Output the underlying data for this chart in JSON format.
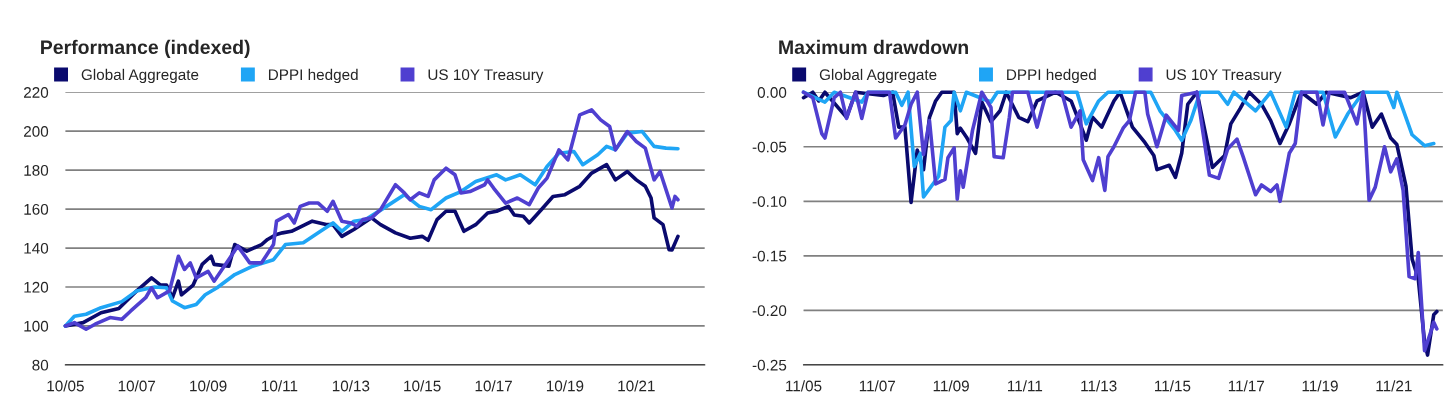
{
  "chart_data": [
    {
      "type": "line",
      "title": "Performance (indexed)",
      "legend": "top left",
      "grid": "y",
      "marker": "none",
      "line_style": "solid",
      "xlim": [
        "2005-10",
        "2023-09"
      ],
      "ylim": [
        80,
        220
      ],
      "yticks": [
        80,
        100,
        120,
        140,
        160,
        180,
        200,
        220
      ],
      "xticks": [
        {
          "value": "2005-10",
          "label": "10/05"
        },
        {
          "value": "2007-10",
          "label": "10/07"
        },
        {
          "value": "2009-10",
          "label": "10/09"
        },
        {
          "value": "2011-10",
          "label": "10/11"
        },
        {
          "value": "2013-10",
          "label": "10/13"
        },
        {
          "value": "2015-10",
          "label": "10/15"
        },
        {
          "value": "2017-10",
          "label": "10/17"
        },
        {
          "value": "2019-10",
          "label": "10/19"
        },
        {
          "value": "2021-10",
          "label": "10/21"
        }
      ],
      "series": [
        {
          "name": "Global Aggregate",
          "color": "#0a0a6e",
          "x": [
            "2005-10",
            "2006-04",
            "2006-10",
            "2007-04",
            "2007-10",
            "2008-03",
            "2008-06",
            "2008-08",
            "2008-10",
            "2008-12",
            "2009-01",
            "2009-05",
            "2009-08",
            "2009-11",
            "2009-12",
            "2010-05",
            "2010-07",
            "2010-11",
            "2011-04",
            "2011-06",
            "2011-09",
            "2011-11",
            "2012-02",
            "2012-09",
            "2013-02",
            "2013-04",
            "2013-07",
            "2013-09",
            "2013-11",
            "2014-05",
            "2014-08",
            "2015-01",
            "2015-06",
            "2015-10",
            "2015-12",
            "2016-03",
            "2016-06",
            "2016-09",
            "2016-12",
            "2017-04",
            "2017-08",
            "2017-11",
            "2018-03",
            "2018-05",
            "2018-08",
            "2018-10",
            "2019-02",
            "2019-06",
            "2019-10",
            "2020-03",
            "2020-07",
            "2020-12",
            "2021-03",
            "2021-07",
            "2021-10",
            "2022-01",
            "2022-03",
            "2022-04",
            "2022-07",
            "2022-09",
            "2022-10",
            "2022-12"
          ],
          "values": [
            100,
            101.7,
            106.8,
            109,
            118,
            124.7,
            121,
            121,
            114.5,
            123,
            116,
            121,
            131.6,
            135.8,
            131.6,
            130.7,
            141.8,
            138.4,
            141.8,
            144.4,
            147,
            147.8,
            148.6,
            153.8,
            152,
            152,
            146,
            147.8,
            149.5,
            155.5,
            152,
            147.8,
            145,
            146,
            144,
            154.6,
            158.9,
            158.9,
            148.6,
            152,
            158,
            158.9,
            161.4,
            157,
            156.3,
            152.9,
            159.7,
            166.5,
            167.4,
            171.7,
            178.5,
            182.8,
            175,
            179.3,
            175,
            171.7,
            165.7,
            155.5,
            152,
            139.2,
            139,
            146
          ]
        },
        {
          "name": "DPPI hedged",
          "color": "#1fa5f5",
          "x": [
            "2005-10",
            "2006-01",
            "2006-05",
            "2006-10",
            "2007-05",
            "2007-10",
            "2008-04",
            "2008-08",
            "2008-10",
            "2009-02",
            "2009-06",
            "2009-09",
            "2010-01",
            "2010-07",
            "2011-01",
            "2011-08",
            "2011-12",
            "2012-06",
            "2012-11",
            "2013-04",
            "2013-07",
            "2013-11",
            "2014-03",
            "2014-10",
            "2015-04",
            "2015-09",
            "2016-01",
            "2016-06",
            "2016-11",
            "2017-04",
            "2017-11",
            "2018-02",
            "2018-07",
            "2018-12",
            "2019-04",
            "2019-08",
            "2020-01",
            "2020-04",
            "2020-09",
            "2020-12",
            "2021-03",
            "2021-07",
            "2021-12",
            "2022-04",
            "2022-08",
            "2022-12"
          ],
          "values": [
            100,
            105,
            106,
            109.4,
            112.5,
            118,
            120,
            119.6,
            112.8,
            109.4,
            111,
            116,
            119.6,
            126.4,
            130.7,
            134,
            141.8,
            142.7,
            147.8,
            152.9,
            148.6,
            153.8,
            154.6,
            161.4,
            167.4,
            161.4,
            159.7,
            165.7,
            169,
            174.2,
            177.6,
            175,
            177.6,
            172.5,
            181.9,
            188.7,
            189.6,
            182.8,
            187.9,
            192.2,
            190.5,
            199,
            199.8,
            192.2,
            191.3,
            191
          ]
        },
        {
          "name": "US 10Y Treasury",
          "color": "#4f3fd0",
          "x": [
            "2005-10",
            "2006-01",
            "2006-05",
            "2006-08",
            "2007-01",
            "2007-05",
            "2007-08",
            "2008-01",
            "2008-03",
            "2008-05",
            "2008-09",
            "2008-12",
            "2009-02",
            "2009-04",
            "2009-06",
            "2009-10",
            "2009-12",
            "2010-05",
            "2010-08",
            "2010-12",
            "2011-04",
            "2011-08",
            "2011-09",
            "2012-01",
            "2012-03",
            "2012-05",
            "2012-08",
            "2012-11",
            "2013-02",
            "2013-04",
            "2013-07",
            "2013-10",
            "2013-12",
            "2014-02",
            "2014-05",
            "2014-08",
            "2015-01",
            "2015-04",
            "2015-06",
            "2015-09",
            "2015-12",
            "2016-02",
            "2016-06",
            "2016-09",
            "2016-11",
            "2017-02",
            "2017-07",
            "2017-08",
            "2017-10",
            "2018-02",
            "2018-06",
            "2018-10",
            "2019-01",
            "2019-04",
            "2019-08",
            "2019-11",
            "2020-03",
            "2020-07",
            "2020-10",
            "2021-01",
            "2021-03",
            "2021-07",
            "2021-10",
            "2022-01",
            "2022-04",
            "2022-06",
            "2022-10",
            "2022-11",
            "2022-12"
          ],
          "values": [
            100,
            101.7,
            98.3,
            100.9,
            104.3,
            103.4,
            107.7,
            114.5,
            119.6,
            114.5,
            118,
            135.8,
            129,
            132.4,
            124.7,
            128,
            123,
            134.1,
            141,
            132.4,
            132.4,
            141.8,
            153.8,
            157.2,
            152.9,
            161.4,
            163.1,
            163.1,
            158.9,
            164,
            153.8,
            152.9,
            151.2,
            154.6,
            155.5,
            159.7,
            172.5,
            168.3,
            164.8,
            168.3,
            166.5,
            175,
            181,
            177.6,
            168.3,
            169,
            172.5,
            175,
            170.8,
            163.1,
            165.7,
            162.3,
            170.8,
            175.9,
            190.4,
            185.3,
            208.4,
            210.9,
            205.8,
            202.4,
            190.4,
            199.8,
            194.7,
            191.3,
            175,
            179.3,
            160.6,
            166.5,
            164.8
          ]
        }
      ]
    },
    {
      "type": "line",
      "title": "Maximum drawdown",
      "legend": "top left",
      "grid": "y",
      "marker": "none",
      "line_style": "solid",
      "xlim": [
        "2005-11",
        "2023-03"
      ],
      "ylim": [
        -0.25,
        0
      ],
      "yticks": [
        {
          "value": -0.25,
          "label": "-0.25"
        },
        {
          "value": -0.2,
          "label": "-0.20"
        },
        {
          "value": -0.15,
          "label": "-0.15"
        },
        {
          "value": -0.1,
          "label": "-0.10"
        },
        {
          "value": -0.05,
          "label": "-0.05"
        },
        {
          "value": 0,
          "label": "0.00"
        }
      ],
      "xticks": [
        {
          "value": "2005-11",
          "label": "11/05"
        },
        {
          "value": "2007-11",
          "label": "11/07"
        },
        {
          "value": "2009-11",
          "label": "11/09"
        },
        {
          "value": "2011-11",
          "label": "11/11"
        },
        {
          "value": "2013-11",
          "label": "11/13"
        },
        {
          "value": "2015-11",
          "label": "11/15"
        },
        {
          "value": "2017-11",
          "label": "11/17"
        },
        {
          "value": "2019-11",
          "label": "11/19"
        },
        {
          "value": "2021-11",
          "label": "11/21"
        }
      ],
      "series": [
        {
          "name": "Global Aggregate",
          "color": "#0a0a6e",
          "x": [
            "2005-11",
            "2006-02",
            "2006-04",
            "2006-06",
            "2007-01",
            "2007-04",
            "2008-01",
            "2008-04",
            "2008-06",
            "2008-08",
            "2008-10",
            "2008-12",
            "2009-02",
            "2009-04",
            "2009-06",
            "2009-08",
            "2009-12",
            "2010-01",
            "2010-02",
            "2010-04",
            "2010-07",
            "2010-09",
            "2010-12",
            "2011-03",
            "2011-05",
            "2011-09",
            "2011-12",
            "2012-03",
            "2012-09",
            "2013-02",
            "2013-05",
            "2013-07",
            "2013-09",
            "2013-12",
            "2014-04",
            "2014-06",
            "2014-10",
            "2015-02",
            "2015-05",
            "2015-06",
            "2015-10",
            "2015-12",
            "2016-02",
            "2016-04",
            "2016-07",
            "2016-12",
            "2017-04",
            "2017-06",
            "2017-09",
            "2017-12",
            "2018-04",
            "2018-07",
            "2018-10",
            "2019-01",
            "2019-05",
            "2019-10",
            "2020-01",
            "2020-09",
            "2021-01",
            "2021-04",
            "2021-07",
            "2021-10",
            "2021-12",
            "2022-03",
            "2022-05",
            "2022-07",
            "2022-09",
            "2022-10",
            "2022-12",
            "2023-01"
          ],
          "values": [
            -0.005,
            0,
            -0.008,
            0,
            -0.023,
            0,
            -0.003,
            0,
            -0.032,
            -0.032,
            -0.101,
            -0.053,
            -0.071,
            -0.023,
            -0.008,
            0,
            0,
            -0.038,
            -0.033,
            -0.041,
            -0.056,
            -0.009,
            -0.027,
            -0.017,
            0,
            -0.023,
            -0.027,
            -0.008,
            0,
            -0.008,
            -0.029,
            -0.044,
            -0.023,
            -0.032,
            -0.008,
            0,
            -0.032,
            -0.046,
            -0.058,
            -0.071,
            -0.067,
            -0.078,
            -0.056,
            -0.011,
            0,
            -0.069,
            -0.058,
            -0.029,
            -0.015,
            0,
            -0.011,
            -0.026,
            -0.047,
            -0.029,
            0,
            -0.011,
            0,
            -0.005,
            0,
            -0.032,
            -0.02,
            -0.042,
            -0.048,
            -0.086,
            -0.153,
            -0.171,
            -0.229,
            -0.241,
            -0.204,
            -0.201
          ]
        },
        {
          "name": "DPPI hedged",
          "color": "#1fa5f5",
          "x": [
            "2005-11",
            "2006-06",
            "2006-09",
            "2007-06",
            "2007-08",
            "2008-05",
            "2008-07",
            "2008-09",
            "2008-11",
            "2009-01",
            "2009-02",
            "2009-07",
            "2009-09",
            "2009-11",
            "2009-12",
            "2010-02",
            "2010-04",
            "2010-12",
            "2011-02",
            "2013-04",
            "2013-07",
            "2013-11",
            "2014-02",
            "2015-04",
            "2015-07",
            "2015-12",
            "2016-02",
            "2016-05",
            "2016-08",
            "2017-02",
            "2017-05",
            "2017-07",
            "2018-02",
            "2018-07",
            "2018-12",
            "2019-03",
            "2019-12",
            "2020-04",
            "2020-08",
            "2021-01",
            "2021-09",
            "2021-11",
            "2021-12",
            "2022-05",
            "2022-09",
            "2022-12"
          ],
          "values": [
            0,
            -0.009,
            0,
            -0.009,
            0,
            0,
            -0.012,
            0,
            -0.068,
            -0.056,
            -0.096,
            -0.077,
            -0.032,
            -0.026,
            0,
            -0.017,
            0,
            -0.009,
            0,
            0,
            -0.029,
            -0.008,
            0,
            0,
            -0.017,
            -0.035,
            -0.044,
            -0.026,
            0,
            0,
            -0.011,
            0,
            -0.017,
            0,
            -0.032,
            0,
            0,
            -0.041,
            -0.02,
            0,
            0,
            -0.014,
            0,
            -0.039,
            -0.049,
            -0.047
          ]
        },
        {
          "name": "US 10Y Treasury",
          "color": "#4f3fd0",
          "x": [
            "2005-11",
            "2006-02",
            "2006-05",
            "2006-06",
            "2006-09",
            "2006-11",
            "2007-01",
            "2007-04",
            "2007-06",
            "2007-08",
            "2008-03",
            "2008-05",
            "2008-08",
            "2008-10",
            "2008-12",
            "2009-02",
            "2009-04",
            "2009-06",
            "2009-09",
            "2009-10",
            "2009-12",
            "2010-01",
            "2010-02",
            "2010-03",
            "2010-06",
            "2010-09",
            "2010-12",
            "2011-01",
            "2011-04",
            "2011-06",
            "2011-07",
            "2011-12",
            "2012-03",
            "2012-06",
            "2012-11",
            "2013-02",
            "2013-05",
            "2013-06",
            "2013-09",
            "2013-11",
            "2014-01",
            "2014-02",
            "2014-04",
            "2014-07",
            "2014-09",
            "2014-11",
            "2015-02",
            "2015-03",
            "2015-06",
            "2015-09",
            "2016-01",
            "2016-02",
            "2016-07",
            "2016-11",
            "2017-02",
            "2017-05",
            "2017-08",
            "2017-10",
            "2018-02",
            "2018-04",
            "2018-07",
            "2018-09",
            "2018-10",
            "2019-01",
            "2019-03",
            "2019-05",
            "2019-10",
            "2019-12",
            "2020-02",
            "2020-07",
            "2020-11",
            "2021-01",
            "2021-03",
            "2021-05",
            "2021-08",
            "2021-10",
            "2021-12",
            "2022-02",
            "2022-04",
            "2022-06",
            "2022-07",
            "2022-09",
            "2022-11",
            "2022-12",
            "2023-01"
          ],
          "values": [
            0,
            -0.005,
            -0.038,
            -0.042,
            -0.005,
            0,
            -0.024,
            0,
            -0.024,
            0,
            0,
            -0.042,
            -0.03,
            -0.011,
            0,
            -0.057,
            -0.026,
            -0.084,
            -0.08,
            -0.06,
            -0.051,
            -0.098,
            -0.072,
            -0.087,
            -0.035,
            0,
            -0.014,
            -0.059,
            -0.06,
            -0.023,
            0,
            0,
            -0.032,
            0,
            0,
            -0.032,
            -0.017,
            -0.062,
            -0.081,
            -0.06,
            -0.09,
            -0.059,
            -0.05,
            -0.033,
            -0.026,
            0,
            0,
            -0.02,
            -0.05,
            -0.021,
            -0.035,
            -0.003,
            0,
            -0.076,
            -0.079,
            -0.052,
            -0.043,
            -0.059,
            -0.094,
            -0.085,
            -0.091,
            -0.085,
            -0.1,
            -0.056,
            -0.047,
            0,
            0,
            -0.03,
            0,
            0,
            -0.029,
            0,
            -0.099,
            -0.087,
            -0.05,
            -0.073,
            -0.061,
            -0.09,
            -0.169,
            -0.171,
            -0.147,
            -0.237,
            -0.22,
            -0.211,
            -0.217
          ]
        }
      ]
    }
  ]
}
